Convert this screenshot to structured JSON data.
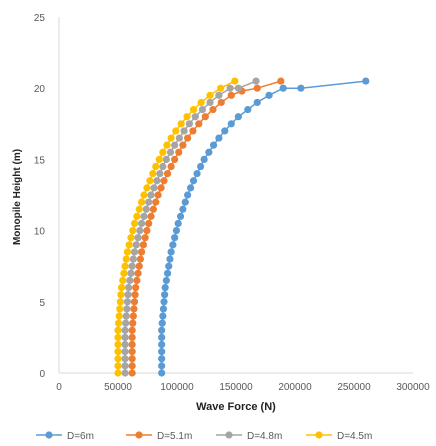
{
  "chart_data": {
    "type": "scatter",
    "title": "",
    "xlabel": "Wave Force (N)",
    "ylabel": "Monopile Height (m)",
    "xlim": [
      0,
      300000
    ],
    "ylim": [
      0,
      25
    ],
    "x_ticks": [
      0,
      50000,
      100000,
      150000,
      200000,
      250000,
      300000
    ],
    "x_tick_labels": [
      "0",
      "50000",
      "100000",
      "150000",
      "200000",
      "250000",
      "300000"
    ],
    "y_ticks": [
      0,
      5,
      10,
      15,
      20,
      25
    ],
    "y_tick_labels": [
      "0",
      "5",
      "10",
      "15",
      "20",
      "25"
    ],
    "grid": false,
    "legend_position": "bottom",
    "series": [
      {
        "name": "D=6m",
        "color": "#5b9bd5",
        "points": [
          [
            87000,
            0
          ],
          [
            87000,
            0.5
          ],
          [
            87000,
            1
          ],
          [
            87000,
            1.5
          ],
          [
            87000,
            2
          ],
          [
            87000,
            2.5
          ],
          [
            87000,
            3
          ],
          [
            87500,
            3.5
          ],
          [
            88000,
            4
          ],
          [
            88500,
            4.5
          ],
          [
            89000,
            5
          ],
          [
            89500,
            5.5
          ],
          [
            90000,
            6
          ],
          [
            91000,
            6.5
          ],
          [
            92000,
            7
          ],
          [
            93000,
            7.5
          ],
          [
            94000,
            8
          ],
          [
            95000,
            8.5
          ],
          [
            96500,
            9
          ],
          [
            98000,
            9.5
          ],
          [
            99500,
            10
          ],
          [
            101000,
            10.5
          ],
          [
            103000,
            11
          ],
          [
            105000,
            11.5
          ],
          [
            107000,
            12
          ],
          [
            109000,
            12.5
          ],
          [
            111500,
            13
          ],
          [
            114000,
            13.5
          ],
          [
            117000,
            14
          ],
          [
            120000,
            14.5
          ],
          [
            123000,
            15
          ],
          [
            127000,
            15.5
          ],
          [
            131000,
            16
          ],
          [
            135500,
            16.5
          ],
          [
            140500,
            17
          ],
          [
            146000,
            17.5
          ],
          [
            152000,
            18
          ],
          [
            160000,
            18.5
          ],
          [
            168000,
            19
          ],
          [
            178000,
            19.5
          ],
          [
            190000,
            20
          ],
          [
            205000,
            20
          ],
          [
            260000,
            20.5
          ]
        ]
      },
      {
        "name": "D=5.1m",
        "color": "#ed7d31",
        "points": [
          [
            62000,
            0
          ],
          [
            62000,
            0.5
          ],
          [
            62000,
            1
          ],
          [
            62000,
            1.5
          ],
          [
            62000,
            2
          ],
          [
            62000,
            2.5
          ],
          [
            62000,
            3
          ],
          [
            62500,
            3.5
          ],
          [
            63000,
            4
          ],
          [
            63500,
            4.5
          ],
          [
            64000,
            5
          ],
          [
            64500,
            5.5
          ],
          [
            65000,
            6
          ],
          [
            66000,
            6.5
          ],
          [
            67000,
            7
          ],
          [
            68000,
            7.5
          ],
          [
            69000,
            8
          ],
          [
            70000,
            8.5
          ],
          [
            71500,
            9
          ],
          [
            73000,
            9.5
          ],
          [
            74500,
            10
          ],
          [
            76000,
            10.5
          ],
          [
            78000,
            11
          ],
          [
            80000,
            11.5
          ],
          [
            82000,
            12
          ],
          [
            84000,
            12.5
          ],
          [
            86500,
            13
          ],
          [
            89000,
            13.5
          ],
          [
            92000,
            14
          ],
          [
            95000,
            14.5
          ],
          [
            98000,
            15
          ],
          [
            101500,
            15.5
          ],
          [
            105000,
            16
          ],
          [
            109000,
            16.5
          ],
          [
            113500,
            17
          ],
          [
            118500,
            17.5
          ],
          [
            124000,
            18
          ],
          [
            130500,
            18.5
          ],
          [
            137500,
            19
          ],
          [
            146000,
            19.5
          ],
          [
            155000,
            19.8
          ],
          [
            168000,
            20
          ],
          [
            188000,
            20.5
          ]
        ]
      },
      {
        "name": "D=4.8m",
        "color": "#a5a5a5",
        "points": [
          [
            56000,
            0
          ],
          [
            56000,
            0.5
          ],
          [
            56000,
            1
          ],
          [
            56000,
            1.5
          ],
          [
            56000,
            2
          ],
          [
            56000,
            2.5
          ],
          [
            56000,
            3
          ],
          [
            56500,
            3.5
          ],
          [
            57000,
            4
          ],
          [
            57500,
            4.5
          ],
          [
            58000,
            5
          ],
          [
            58500,
            5.5
          ],
          [
            59000,
            6
          ],
          [
            60000,
            6.5
          ],
          [
            61000,
            7
          ],
          [
            62000,
            7.5
          ],
          [
            63000,
            8
          ],
          [
            64000,
            8.5
          ],
          [
            65500,
            9
          ],
          [
            67000,
            9.5
          ],
          [
            68500,
            10
          ],
          [
            70000,
            10.5
          ],
          [
            72000,
            11
          ],
          [
            74000,
            11.5
          ],
          [
            76000,
            12
          ],
          [
            78000,
            12.5
          ],
          [
            80500,
            13
          ],
          [
            83000,
            13.5
          ],
          [
            85500,
            14
          ],
          [
            88000,
            14.5
          ],
          [
            91000,
            15
          ],
          [
            94500,
            15.5
          ],
          [
            98000,
            16
          ],
          [
            102000,
            16.5
          ],
          [
            106000,
            17
          ],
          [
            110500,
            17.5
          ],
          [
            115500,
            18
          ],
          [
            121500,
            18.5
          ],
          [
            128000,
            19
          ],
          [
            135500,
            19.5
          ],
          [
            145000,
            20
          ],
          [
            152000,
            20
          ],
          [
            167000,
            20.5
          ]
        ]
      },
      {
        "name": "D=4.5m",
        "color": "#ffc000",
        "points": [
          [
            50000,
            0
          ],
          [
            50000,
            0.5
          ],
          [
            50000,
            1
          ],
          [
            50000,
            1.5
          ],
          [
            50000,
            2
          ],
          [
            50000,
            2.5
          ],
          [
            50000,
            3
          ],
          [
            50500,
            3.5
          ],
          [
            51000,
            4
          ],
          [
            51500,
            4.5
          ],
          [
            52000,
            5
          ],
          [
            52500,
            5.5
          ],
          [
            53000,
            6
          ],
          [
            54000,
            6.5
          ],
          [
            55000,
            7
          ],
          [
            56000,
            7.5
          ],
          [
            57000,
            8
          ],
          [
            58000,
            8.5
          ],
          [
            59500,
            9
          ],
          [
            61000,
            9.5
          ],
          [
            62500,
            10
          ],
          [
            64000,
            10.5
          ],
          [
            66000,
            11
          ],
          [
            68000,
            11.5
          ],
          [
            70000,
            12
          ],
          [
            72000,
            12.5
          ],
          [
            74500,
            13
          ],
          [
            77000,
            13.5
          ],
          [
            79500,
            14
          ],
          [
            82000,
            14.5
          ],
          [
            85000,
            15
          ],
          [
            88000,
            15.5
          ],
          [
            91500,
            16
          ],
          [
            95000,
            16.5
          ],
          [
            99000,
            17
          ],
          [
            103500,
            17.5
          ],
          [
            108500,
            18
          ],
          [
            114000,
            18.5
          ],
          [
            120500,
            19
          ],
          [
            128000,
            19.5
          ],
          [
            137000,
            20
          ],
          [
            149000,
            20.5
          ]
        ]
      }
    ]
  }
}
